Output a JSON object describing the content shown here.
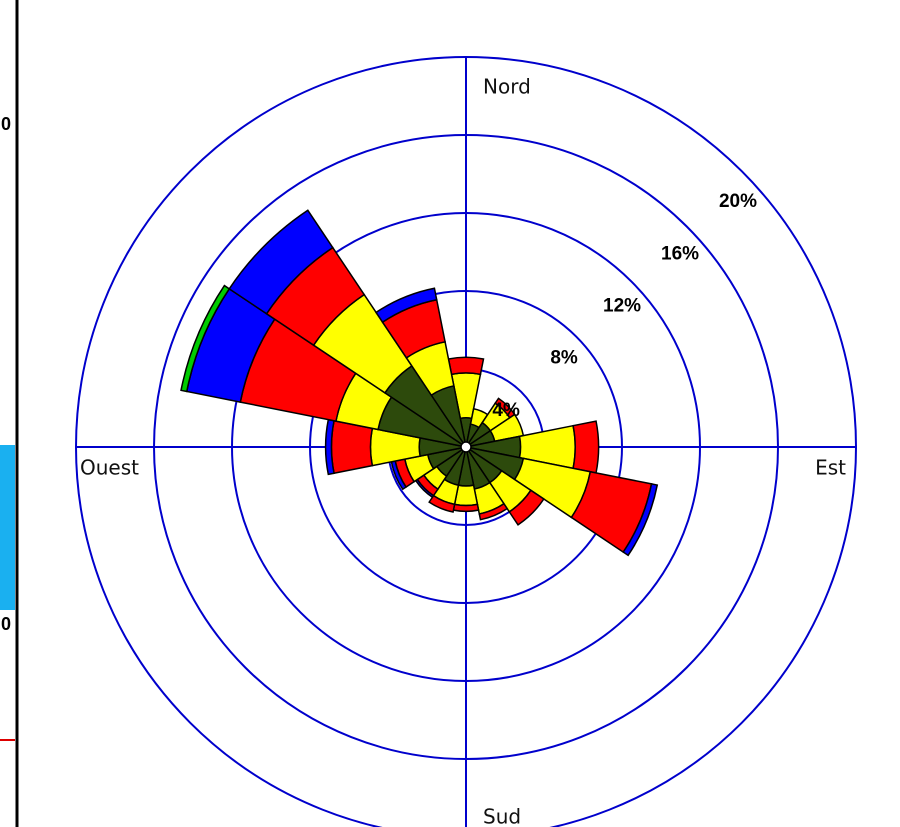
{
  "chart_data": {
    "type": "windrose",
    "categories": [
      "Nord",
      null,
      null,
      null,
      "Est",
      null,
      null,
      null,
      "Sud",
      null,
      null,
      null,
      "Ouest",
      null,
      null,
      null
    ],
    "series": [
      {
        "color": "#2d4a0c",
        "values": [
          1.5,
          1.2,
          1.5,
          1.5,
          2.8,
          3.0,
          2.2,
          2.2,
          2.0,
          2.0,
          1.8,
          2.0,
          2.4,
          4.6,
          5.0,
          3.2
        ]
      },
      {
        "color": "#ffff00",
        "values": [
          2.3,
          0.8,
          1.2,
          1.5,
          2.8,
          3.5,
          1.8,
          1.3,
          1.0,
          1.0,
          0.8,
          1.2,
          2.5,
          2.2,
          4.4,
          2.3
        ]
      },
      {
        "color": "#ff0000",
        "values": [
          0.8,
          0,
          0.3,
          0,
          1.2,
          3.2,
          0.8,
          0.3,
          0.3,
          0.4,
          0.4,
          0.5,
          2.0,
          5.0,
          2.9,
          2.2
        ]
      },
      {
        "color": "#0000ff",
        "values": [
          0,
          0,
          0,
          0,
          0,
          0.3,
          0,
          0,
          0,
          0,
          0.1,
          0.2,
          0.3,
          2.8,
          2.3,
          0.6
        ]
      },
      {
        "color": "#00cc00",
        "values": [
          0,
          0,
          0,
          0,
          0,
          0,
          0,
          0,
          0,
          0,
          0,
          0,
          0,
          0.3,
          0,
          0
        ]
      }
    ],
    "rlim": [
      0,
      20
    ],
    "rticks": [
      {
        "value": 4,
        "label": "4%"
      },
      {
        "value": 8,
        "label": "8%"
      },
      {
        "value": 12,
        "label": "12%"
      },
      {
        "value": 16,
        "label": "16%"
      },
      {
        "value": 20,
        "label": "20%"
      }
    ],
    "grid_color": "#0000cc"
  },
  "side_panel": {
    "labels": [
      "0",
      "0"
    ]
  }
}
